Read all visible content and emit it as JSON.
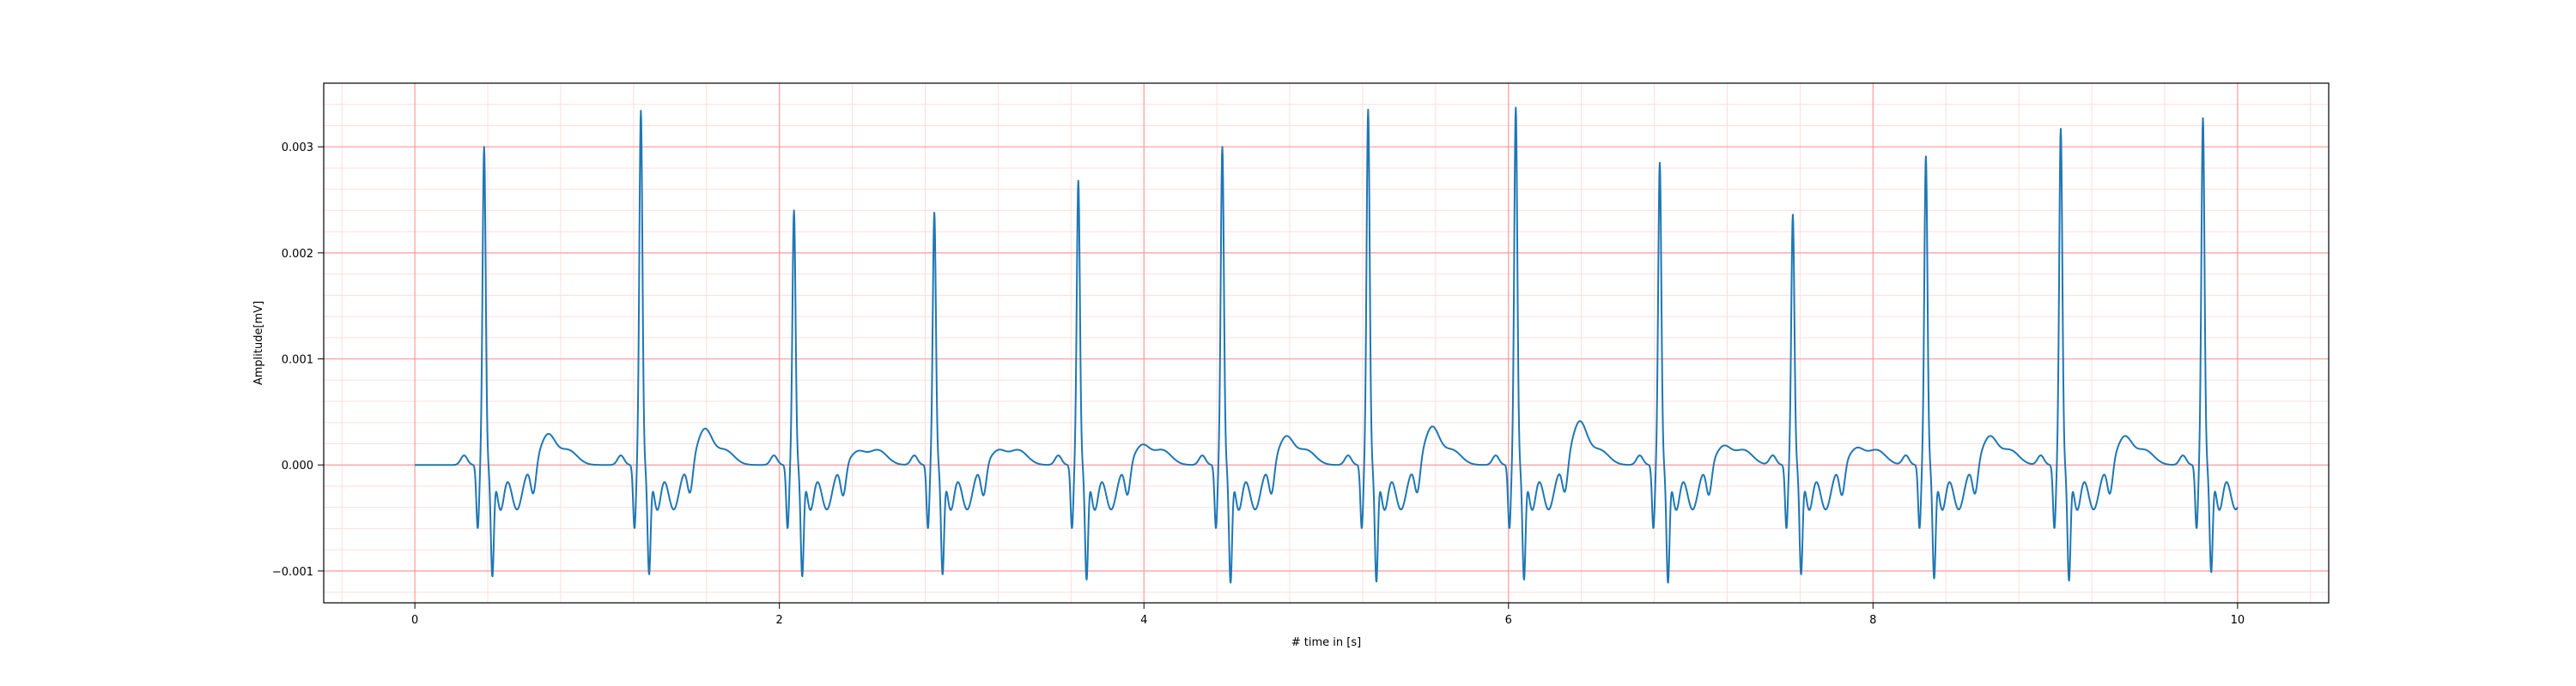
{
  "chart_data": {
    "type": "line",
    "title": "",
    "xlabel": "# time in [s]",
    "ylabel": "Amplitude[mV]",
    "xlim": [
      -0.5,
      10.5
    ],
    "ylim": [
      -0.0013,
      0.0036
    ],
    "x_ticks": [
      0,
      2,
      4,
      6,
      8,
      10
    ],
    "x_tick_labels": [
      "0",
      "2",
      "4",
      "6",
      "8",
      "10"
    ],
    "y_ticks": [
      -0.001,
      0.0,
      0.001,
      0.002,
      0.003
    ],
    "y_tick_labels": [
      "−0.001",
      "0.000",
      "0.001",
      "0.002",
      "0.003"
    ],
    "grid": {
      "major": true,
      "minor": true,
      "major_color": "#ff9999",
      "minor_color": "#ffdddd"
    },
    "line_color": "#1f77b4",
    "series": [
      {
        "beats": [
          {
            "t": 0.38,
            "peak": 0.003,
            "s": -0.00102,
            "tw": 0.00028
          },
          {
            "t": 1.24,
            "peak": 0.00334,
            "s": -0.001,
            "tw": 0.00033
          },
          {
            "t": 2.08,
            "peak": 0.0024,
            "s": -0.00102,
            "tw": 0.00012
          },
          {
            "t": 2.85,
            "peak": 0.00238,
            "s": -0.001,
            "tw": 0.00013
          },
          {
            "t": 3.64,
            "peak": 0.00268,
            "s": -0.00105,
            "tw": 0.00018
          },
          {
            "t": 4.43,
            "peak": 0.003,
            "s": -0.00108,
            "tw": 0.00026
          },
          {
            "t": 5.23,
            "peak": 0.00335,
            "s": -0.00107,
            "tw": 0.00035
          },
          {
            "t": 6.04,
            "peak": 0.00337,
            "s": -0.00105,
            "tw": 0.0004
          },
          {
            "t": 6.83,
            "peak": 0.00285,
            "s": -0.00108,
            "tw": 0.00017
          },
          {
            "t": 7.56,
            "peak": 0.00236,
            "s": -0.001,
            "tw": 0.00015
          },
          {
            "t": 8.29,
            "peak": 0.00291,
            "s": -0.00104,
            "tw": 0.00026
          },
          {
            "t": 9.03,
            "peak": 0.00317,
            "s": -0.00106,
            "tw": 0.00026
          },
          {
            "t": 9.81,
            "peak": 0.00327,
            "s": -0.00098,
            "tw": 0.00025
          }
        ],
        "x_range": [
          0,
          10
        ]
      }
    ]
  }
}
